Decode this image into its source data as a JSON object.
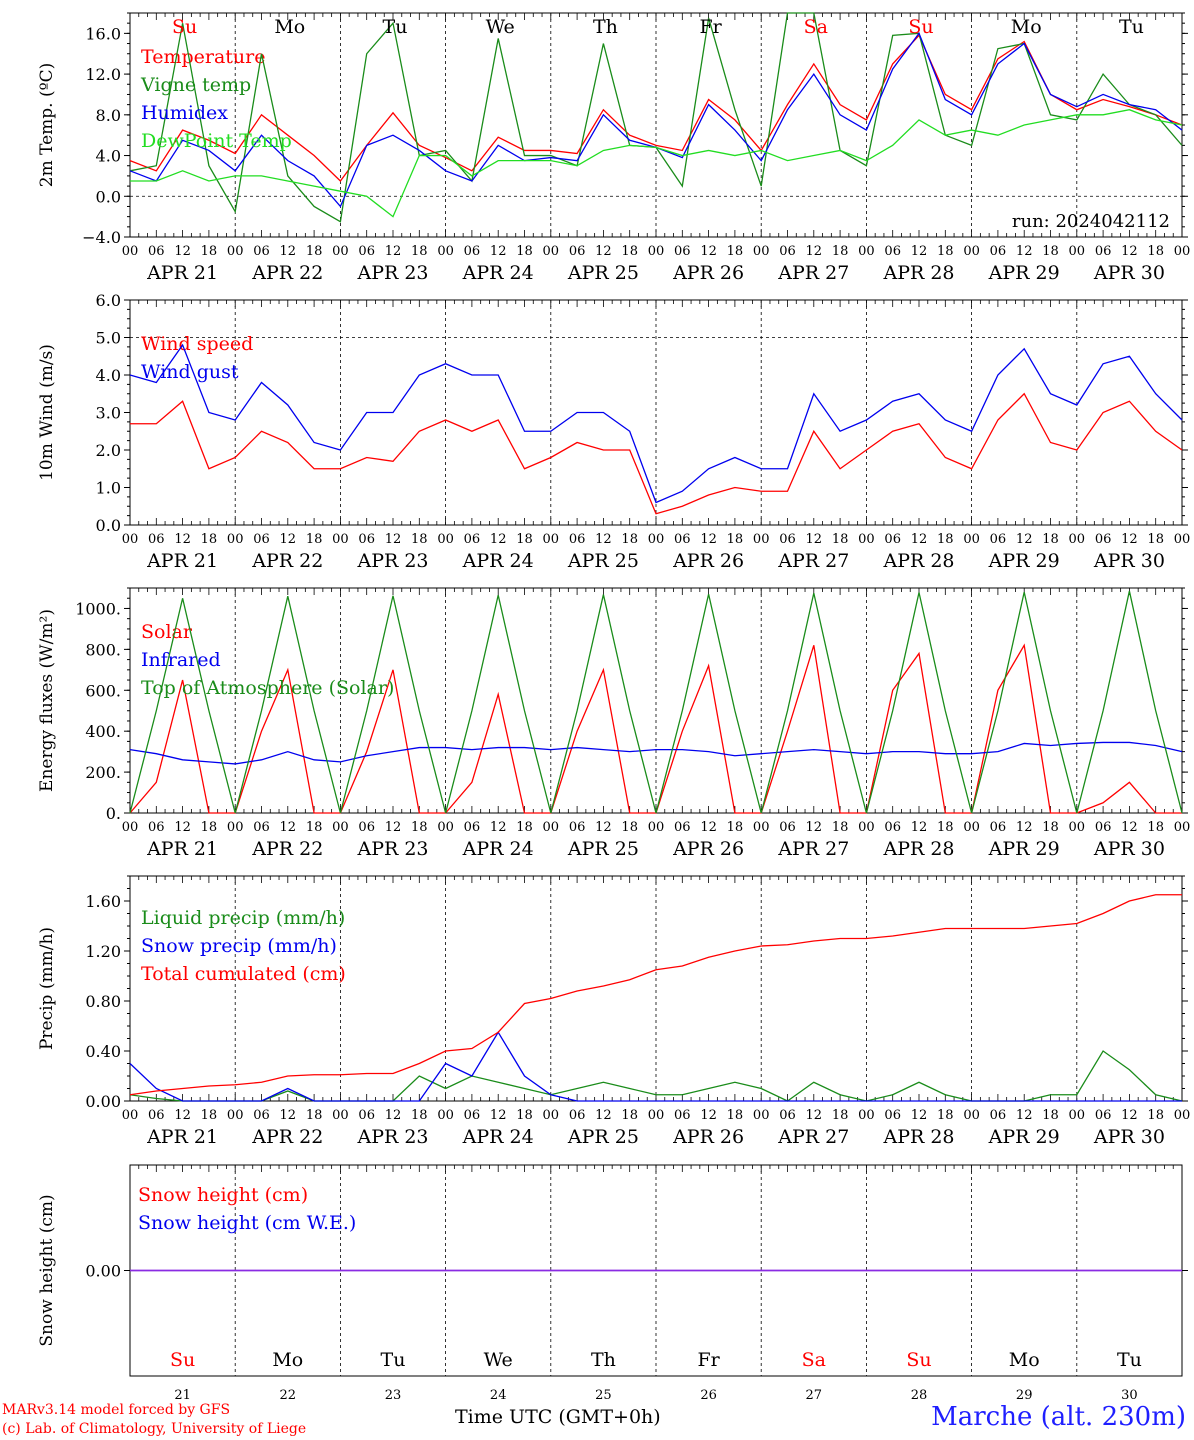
{
  "run_label": "run: 2024042112",
  "credit_line1": "MARv3.14 model forced by GFS",
  "credit_line2": "(c) Lab. of Climatology, University of Liege",
  "x_axis_title": "Time UTC (GMT+0h)",
  "x_axis_title_overprint": "APR",
  "station_label": "Marche (alt. 230m)",
  "hour_ticks": [
    "00",
    "06",
    "12",
    "18"
  ],
  "end_tick": "00",
  "days": [
    {
      "date": "APR 21",
      "dow": "Su",
      "num": "21",
      "weekend": true
    },
    {
      "date": "APR 22",
      "dow": "Mo",
      "num": "22",
      "weekend": false
    },
    {
      "date": "APR 23",
      "dow": "Tu",
      "num": "23",
      "weekend": false
    },
    {
      "date": "APR 24",
      "dow": "We",
      "num": "24",
      "weekend": false
    },
    {
      "date": "APR 25",
      "dow": "Th",
      "num": "25",
      "weekend": false
    },
    {
      "date": "APR 26",
      "dow": "Fr",
      "num": "26",
      "weekend": false
    },
    {
      "date": "APR 27",
      "dow": "Sa",
      "num": "27",
      "weekend": true
    },
    {
      "date": "APR 28",
      "dow": "Su",
      "num": "28",
      "weekend": true
    },
    {
      "date": "APR 29",
      "dow": "Mo",
      "num": "29",
      "weekend": false
    },
    {
      "date": "APR 30",
      "dow": "Tu",
      "num": "30",
      "weekend": false
    }
  ],
  "colors": {
    "red": "#ff0000",
    "blue": "#0000ee",
    "green": "#1a8c1a",
    "lightgreen": "#22dd22",
    "purple": "#8a2be2"
  },
  "chart_data": [
    {
      "type": "line",
      "ylabel": "2m Temp. (ºC)",
      "ylim": [
        -4,
        18
      ],
      "yticks": [
        -4,
        0,
        4,
        8,
        12,
        16
      ],
      "ytick_labels": [
        "−4.0",
        "0.0",
        "4.0",
        "8.0",
        "12.0",
        "16.0"
      ],
      "zero_line": 0,
      "x_hours": [
        0,
        6,
        12,
        18,
        24,
        30,
        36,
        42,
        48,
        54,
        60,
        66,
        72,
        78,
        84,
        90,
        96,
        102,
        108,
        114,
        120,
        126,
        132,
        138,
        144,
        150,
        156,
        162,
        168,
        174,
        180,
        186,
        192,
        198,
        204,
        210,
        216,
        222,
        228,
        234,
        240
      ],
      "series": [
        {
          "name": "Temperature",
          "color": "red",
          "values": [
            3.5,
            2.5,
            6.5,
            5.5,
            4.2,
            8.0,
            6.0,
            4.0,
            1.5,
            5.0,
            8.2,
            5.0,
            3.8,
            2.5,
            5.8,
            4.5,
            4.5,
            4.2,
            8.5,
            6.0,
            5.0,
            4.5,
            9.5,
            7.5,
            4.5,
            9.0,
            13.0,
            9.0,
            7.5,
            13.0,
            15.8,
            10.0,
            8.5,
            13.5,
            15.2,
            10.0,
            8.5,
            9.5,
            8.8,
            8.0,
            7.0
          ]
        },
        {
          "name": "Vigne temp",
          "color": "green",
          "values": [
            2.5,
            3.0,
            17.0,
            3.0,
            -1.5,
            14.0,
            2.0,
            -1.0,
            -2.5,
            14.0,
            17.0,
            4.0,
            4.5,
            1.5,
            15.5,
            4.0,
            4.0,
            3.0,
            15.0,
            5.0,
            4.8,
            1.0,
            17.5,
            8.5,
            1.0,
            18.0,
            18.0,
            4.5,
            3.0,
            15.8,
            16.0,
            6.0,
            5.0,
            14.5,
            15.0,
            8.0,
            7.5,
            12.0,
            9.0,
            8.0,
            5.0
          ]
        },
        {
          "name": "Humidex",
          "color": "blue",
          "values": [
            2.5,
            1.5,
            5.5,
            4.5,
            2.5,
            6.0,
            3.5,
            2.0,
            -1.0,
            5.0,
            6.0,
            4.5,
            2.5,
            1.5,
            5.0,
            3.5,
            3.8,
            3.5,
            8.0,
            5.5,
            4.8,
            3.8,
            9.0,
            6.5,
            3.5,
            8.5,
            12.0,
            8.0,
            6.5,
            12.5,
            16.0,
            9.5,
            8.0,
            13.0,
            15.0,
            10.0,
            8.8,
            10.0,
            9.0,
            8.5,
            6.5
          ]
        },
        {
          "name": "DewPoint Temp",
          "color": "lightgreen",
          "values": [
            1.5,
            1.5,
            2.5,
            1.5,
            2.0,
            2.0,
            1.5,
            1.0,
            0.5,
            0.0,
            -2.0,
            4.0,
            4.0,
            2.0,
            3.5,
            3.5,
            3.5,
            3.0,
            4.5,
            5.0,
            4.8,
            4.0,
            4.5,
            4.0,
            4.5,
            3.5,
            4.0,
            4.5,
            3.5,
            5.0,
            7.5,
            6.0,
            6.5,
            6.0,
            7.0,
            7.5,
            8.0,
            8.0,
            8.5,
            7.5,
            7.0
          ]
        }
      ]
    },
    {
      "type": "line",
      "ylabel": "10m Wind (m/s)",
      "ylim": [
        0,
        6
      ],
      "yticks": [
        0,
        1,
        2,
        3,
        4,
        5,
        6
      ],
      "ytick_labels": [
        "0.0",
        "1.0",
        "2.0",
        "3.0",
        "4.0",
        "5.0",
        "6.0"
      ],
      "zero_line": 5,
      "x_hours": [
        0,
        6,
        12,
        18,
        24,
        30,
        36,
        42,
        48,
        54,
        60,
        66,
        72,
        78,
        84,
        90,
        96,
        102,
        108,
        114,
        120,
        126,
        132,
        138,
        144,
        150,
        156,
        162,
        168,
        174,
        180,
        186,
        192,
        198,
        204,
        210,
        216,
        222,
        228,
        234,
        240
      ],
      "series": [
        {
          "name": "Wind speed",
          "color": "red",
          "values": [
            2.7,
            2.7,
            3.3,
            1.5,
            1.8,
            2.5,
            2.2,
            1.5,
            1.5,
            1.8,
            1.7,
            2.5,
            2.8,
            2.5,
            2.8,
            1.5,
            1.8,
            2.2,
            2.0,
            2.0,
            0.3,
            0.5,
            0.8,
            1.0,
            0.9,
            0.9,
            2.5,
            1.5,
            2.0,
            2.5,
            2.7,
            1.8,
            1.5,
            2.8,
            3.5,
            2.2,
            2.0,
            3.0,
            3.3,
            2.5,
            2.0
          ]
        },
        {
          "name": "Wind gust",
          "color": "blue",
          "values": [
            4.0,
            3.8,
            4.8,
            3.0,
            2.8,
            3.8,
            3.2,
            2.2,
            2.0,
            3.0,
            3.0,
            4.0,
            4.3,
            4.0,
            4.0,
            2.5,
            2.5,
            3.0,
            3.0,
            2.5,
            0.6,
            0.9,
            1.5,
            1.8,
            1.5,
            1.5,
            3.5,
            2.5,
            2.8,
            3.3,
            3.5,
            2.8,
            2.5,
            4.0,
            4.7,
            3.5,
            3.2,
            4.3,
            4.5,
            3.5,
            2.8
          ]
        }
      ]
    },
    {
      "type": "line",
      "ylabel": "Energy fluxes (W/m²)",
      "ylim": [
        0,
        1100
      ],
      "yticks": [
        0,
        200,
        400,
        600,
        800,
        1000
      ],
      "ytick_labels": [
        "0.",
        "200.",
        "400.",
        "600.",
        "800.",
        "1000."
      ],
      "zero_line": null,
      "x_hours": [
        0,
        6,
        12,
        18,
        24,
        30,
        36,
        42,
        48,
        54,
        60,
        66,
        72,
        78,
        84,
        90,
        96,
        102,
        108,
        114,
        120,
        126,
        132,
        138,
        144,
        150,
        156,
        162,
        168,
        174,
        180,
        186,
        192,
        198,
        204,
        210,
        216,
        222,
        228,
        234,
        240
      ],
      "series": [
        {
          "name": "Solar",
          "color": "red",
          "values": [
            0,
            150,
            650,
            0,
            0,
            400,
            700,
            0,
            0,
            300,
            700,
            0,
            0,
            150,
            580,
            0,
            0,
            400,
            700,
            0,
            0,
            400,
            720,
            0,
            0,
            400,
            820,
            0,
            0,
            600,
            780,
            0,
            0,
            600,
            820,
            0,
            0,
            50,
            150,
            0,
            0
          ]
        },
        {
          "name": "Infrared",
          "color": "blue",
          "values": [
            310,
            290,
            260,
            250,
            240,
            260,
            300,
            260,
            250,
            280,
            300,
            320,
            320,
            310,
            320,
            320,
            310,
            320,
            310,
            300,
            310,
            310,
            300,
            280,
            290,
            300,
            310,
            300,
            290,
            300,
            300,
            290,
            290,
            300,
            340,
            330,
            340,
            345,
            345,
            330,
            300
          ]
        },
        {
          "name": "Top of Atmosphere (Solar)",
          "color": "green",
          "values": [
            0,
            500,
            1050,
            500,
            0,
            500,
            1060,
            500,
            0,
            500,
            1062,
            500,
            0,
            500,
            1065,
            500,
            0,
            500,
            1068,
            500,
            0,
            500,
            1070,
            500,
            0,
            500,
            1075,
            500,
            0,
            500,
            1078,
            500,
            0,
            500,
            1080,
            500,
            0,
            500,
            1085,
            500,
            0
          ]
        }
      ]
    },
    {
      "type": "line",
      "ylabel": "Precip (mm/h)",
      "ylim": [
        0,
        1.8
      ],
      "yticks": [
        0,
        0.4,
        0.8,
        1.2,
        1.6
      ],
      "ytick_labels": [
        "0.00",
        "0.40",
        "0.80",
        "1.20",
        "1.60"
      ],
      "zero_line": null,
      "x_hours": [
        0,
        6,
        12,
        18,
        24,
        30,
        36,
        42,
        48,
        54,
        60,
        66,
        72,
        78,
        84,
        90,
        96,
        102,
        108,
        114,
        120,
        126,
        132,
        138,
        144,
        150,
        156,
        162,
        168,
        174,
        180,
        186,
        192,
        198,
        204,
        210,
        216,
        222,
        228,
        234,
        240
      ],
      "series": [
        {
          "name": "Liquid precip (mm/h)",
          "color": "green",
          "values": [
            0.05,
            0.02,
            0.0,
            0.0,
            0.0,
            0.0,
            0.08,
            0.0,
            0.0,
            0.0,
            0.0,
            0.2,
            0.1,
            0.2,
            0.15,
            0.1,
            0.05,
            0.1,
            0.15,
            0.1,
            0.05,
            0.05,
            0.1,
            0.15,
            0.1,
            0.0,
            0.15,
            0.05,
            0.0,
            0.05,
            0.15,
            0.05,
            0.0,
            0.0,
            0.0,
            0.05,
            0.05,
            0.4,
            0.25,
            0.05,
            0.0
          ]
        },
        {
          "name": "Snow precip (mm/h)",
          "color": "blue",
          "values": [
            0.3,
            0.1,
            0.0,
            0.0,
            0.0,
            0.0,
            0.1,
            0.0,
            0.0,
            0.0,
            0.0,
            0.0,
            0.3,
            0.2,
            0.55,
            0.2,
            0.05,
            0.0,
            0.0,
            0.0,
            0.0,
            0.0,
            0.0,
            0.0,
            0.0,
            0.0,
            0.0,
            0.0,
            0.0,
            0.0,
            0.0,
            0.0,
            0.0,
            0.0,
            0.0,
            0.0,
            0.0,
            0.0,
            0.0,
            0.0,
            0.0
          ]
        },
        {
          "name": "Total cumulated (cm)",
          "color": "red",
          "values": [
            0.05,
            0.08,
            0.1,
            0.12,
            0.13,
            0.15,
            0.2,
            0.21,
            0.21,
            0.22,
            0.22,
            0.3,
            0.4,
            0.42,
            0.55,
            0.78,
            0.82,
            0.88,
            0.92,
            0.97,
            1.05,
            1.08,
            1.15,
            1.2,
            1.24,
            1.25,
            1.28,
            1.3,
            1.3,
            1.32,
            1.35,
            1.38,
            1.38,
            1.38,
            1.38,
            1.4,
            1.42,
            1.5,
            1.6,
            1.65,
            1.65
          ]
        }
      ]
    },
    {
      "type": "line",
      "ylabel": "Snow height (cm)",
      "ylim": [
        -1,
        1
      ],
      "yticks": [
        0
      ],
      "ytick_labels": [
        "0.00"
      ],
      "zero_line": null,
      "x_hours": [
        0,
        240
      ],
      "series": [
        {
          "name": "Snow height (cm)",
          "color": "red",
          "values": [
            0,
            0
          ]
        },
        {
          "name": "Snow height (cm W.E.)",
          "color": "blue",
          "values": [
            0,
            0
          ]
        }
      ]
    }
  ]
}
